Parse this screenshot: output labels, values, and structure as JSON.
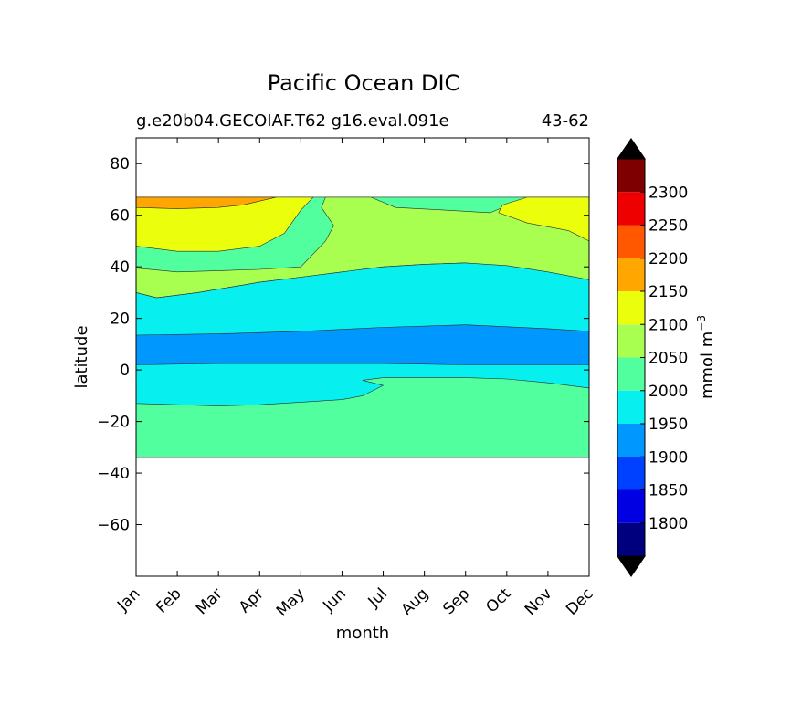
{
  "chart_data": {
    "type": "heatmap",
    "subtype": "filled-contour",
    "title": "Pacific Ocean DIC",
    "subtitle_left": "g.e20b04.GECOIAF.T62 g16.eval.091e",
    "subtitle_right": "43-62",
    "xlabel": "month",
    "ylabel": "latitude",
    "x_categories": [
      "Jan",
      "Feb",
      "Mar",
      "Apr",
      "May",
      "Jun",
      "Jul",
      "Aug",
      "Sep",
      "Oct",
      "Nov",
      "Dec"
    ],
    "xlim": [
      0,
      11
    ],
    "ylim": [
      -80,
      90
    ],
    "y_ticks": [
      80,
      60,
      40,
      20,
      0,
      -20,
      -40,
      -60
    ],
    "y_tick_labels": [
      "80",
      "60",
      "40",
      "20",
      "0",
      "−20",
      "−40",
      "−60"
    ],
    "data_lat_range": [
      -34,
      67
    ],
    "grid": false,
    "colorbar": {
      "label": "mmol m",
      "label_superscript": "−3",
      "levels": [
        1750,
        1800,
        1850,
        1900,
        1950,
        2000,
        2050,
        2100,
        2150,
        2200,
        2250,
        2300,
        2350
      ],
      "tick_values": [
        1800,
        1850,
        1900,
        1950,
        2000,
        2050,
        2100,
        2150,
        2200,
        2250,
        2300
      ],
      "tick_labels": [
        "1800",
        "1850",
        "1900",
        "1950",
        "2000",
        "2050",
        "2100",
        "2150",
        "2200",
        "2250",
        "2300"
      ],
      "colors": [
        "#00007f",
        "#0000e3",
        "#0040ff",
        "#0098ff",
        "#07f0ef",
        "#52ff9f",
        "#a8ff50",
        "#ebff0c",
        "#ffa600",
        "#ff5800",
        "#ee0000",
        "#7f0000"
      ],
      "extend_min_color": "#000000",
      "extend_max_color": "#000000"
    },
    "regions": [
      {
        "level": "2000-2050",
        "color": "#52ff9f",
        "boundary": [
          [
            0,
            -34
          ],
          [
            11,
            -34
          ],
          [
            11,
            67
          ],
          [
            0,
            67
          ]
        ]
      },
      {
        "level": "2050-2100",
        "color": "#a8ff50",
        "boundary": [
          [
            0,
            30
          ],
          [
            0.5,
            28
          ],
          [
            1.5,
            30
          ],
          [
            3,
            34
          ],
          [
            4,
            36
          ],
          [
            5,
            38
          ],
          [
            6,
            40
          ],
          [
            7,
            41
          ],
          [
            8,
            41.5
          ],
          [
            9,
            40
          ],
          [
            10,
            37
          ],
          [
            11,
            35
          ],
          [
            11,
            67
          ],
          [
            9.5,
            67
          ],
          [
            8.6,
            61
          ],
          [
            7.5,
            62
          ],
          [
            6.3,
            63
          ],
          [
            5.7,
            67
          ],
          [
            4.6,
            67
          ],
          [
            4.5,
            63
          ],
          [
            4.8,
            56
          ],
          [
            4.6,
            50
          ],
          [
            4.0,
            40
          ],
          [
            3,
            39
          ],
          [
            2,
            38.5
          ],
          [
            1,
            38
          ],
          [
            0,
            39.5
          ]
        ]
      },
      {
        "level": "2100-2150",
        "color": "#ebff0c",
        "boundary": [
          [
            0,
            48
          ],
          [
            1,
            46
          ],
          [
            2,
            46
          ],
          [
            3,
            48
          ],
          [
            3.6,
            53
          ],
          [
            4.0,
            62
          ],
          [
            4.3,
            67
          ],
          [
            0,
            67
          ]
        ]
      },
      {
        "level": "2100-2150",
        "color": "#ebff0c",
        "boundary": [
          [
            11,
            50
          ],
          [
            10.5,
            54
          ],
          [
            9.5,
            57
          ],
          [
            8.8,
            61
          ],
          [
            8.9,
            64
          ],
          [
            9.5,
            67
          ],
          [
            11,
            67
          ]
        ]
      },
      {
        "level": "2150-2200",
        "color": "#ffa600",
        "boundary": [
          [
            0,
            63
          ],
          [
            1,
            62.5
          ],
          [
            2,
            63
          ],
          [
            2.6,
            64
          ],
          [
            3.4,
            67
          ],
          [
            0,
            67
          ]
        ]
      },
      {
        "level": "1950-2000",
        "color": "#07f0ef",
        "boundary": [
          [
            0,
            -13
          ],
          [
            1,
            -13.5
          ],
          [
            2,
            -14
          ],
          [
            3,
            -13.5
          ],
          [
            4,
            -12.5
          ],
          [
            5,
            -11.5
          ],
          [
            5.5,
            -10
          ],
          [
            6,
            -6
          ],
          [
            5.5,
            -4
          ],
          [
            6,
            -3
          ],
          [
            7,
            -3
          ],
          [
            8,
            -3
          ],
          [
            9,
            -3.5
          ],
          [
            10,
            -5
          ],
          [
            11,
            -7
          ],
          [
            11,
            35
          ],
          [
            10,
            38
          ],
          [
            9,
            40.5
          ],
          [
            8,
            41.5
          ],
          [
            7,
            41
          ],
          [
            6,
            40
          ],
          [
            5,
            38
          ],
          [
            4,
            36
          ],
          [
            3,
            34
          ],
          [
            1.5,
            30
          ],
          [
            0.5,
            28
          ],
          [
            0,
            30
          ]
        ]
      },
      {
        "level": "1900-1950",
        "color": "#0098ff",
        "boundary": [
          [
            0,
            2
          ],
          [
            2,
            2.5
          ],
          [
            4,
            2.5
          ],
          [
            6,
            2.5
          ],
          [
            8,
            2
          ],
          [
            11,
            2
          ],
          [
            11,
            15
          ],
          [
            10,
            16
          ],
          [
            8,
            17.5
          ],
          [
            6,
            16.5
          ],
          [
            4,
            15
          ],
          [
            2,
            14
          ],
          [
            0,
            13.5
          ]
        ]
      }
    ]
  }
}
